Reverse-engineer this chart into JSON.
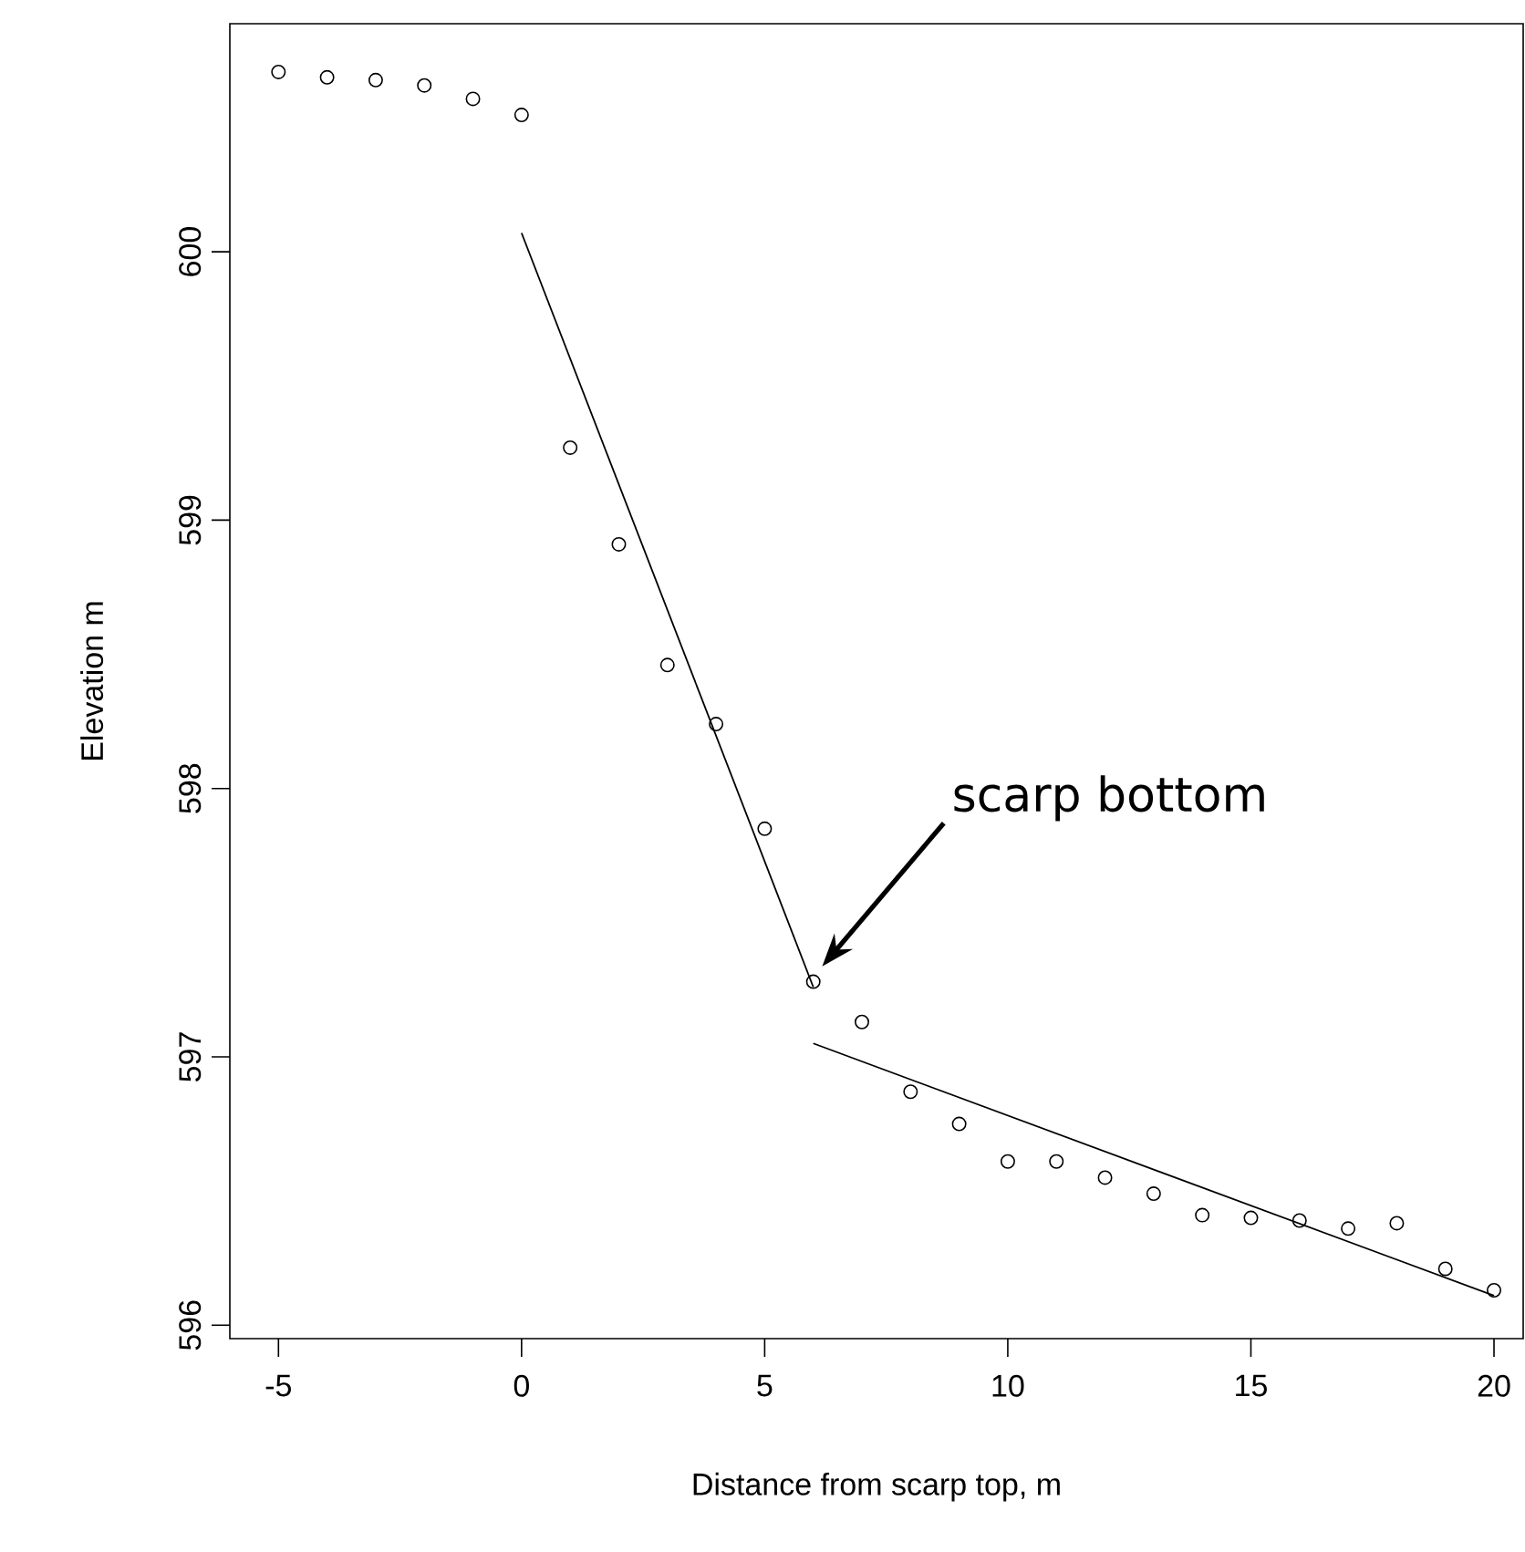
{
  "chart_data": {
    "type": "scatter",
    "xlabel": "Distance from scarp top, m",
    "ylabel": "Elevation m",
    "xlim": [
      -6,
      20.6
    ],
    "ylim": [
      595.95,
      600.85
    ],
    "xticks": [
      -5,
      0,
      5,
      10,
      15,
      20
    ],
    "yticks": [
      596,
      597,
      598,
      599,
      600
    ],
    "marker": "circle",
    "annotations": [
      "scarp bottom"
    ],
    "series": [
      {
        "color": "#000000",
        "x": [
          -5,
          -4,
          -3,
          -2,
          -1,
          0,
          1,
          2,
          3,
          4,
          5,
          6,
          7,
          8,
          9,
          10,
          11,
          12,
          13,
          14,
          15,
          16,
          17,
          18,
          19,
          20
        ],
        "values": [
          600.67,
          600.65,
          600.64,
          600.62,
          600.57,
          600.51,
          599.27,
          598.91,
          598.46,
          598.24,
          597.85,
          597.28,
          597.13,
          596.87,
          596.75,
          596.61,
          596.61,
          596.55,
          596.49,
          596.41,
          596.4,
          596.39,
          596.36,
          596.38,
          596.21,
          596.13
        ]
      },
      {
        "type": "line",
        "color": "#000000",
        "marker": "none",
        "x": [
          0,
          6
        ],
        "values": [
          600.07,
          597.26
        ]
      },
      {
        "type": "line",
        "color": "#000000",
        "marker": "none",
        "x": [
          6,
          20
        ],
        "values": [
          597.05,
          596.11
        ]
      }
    ]
  }
}
